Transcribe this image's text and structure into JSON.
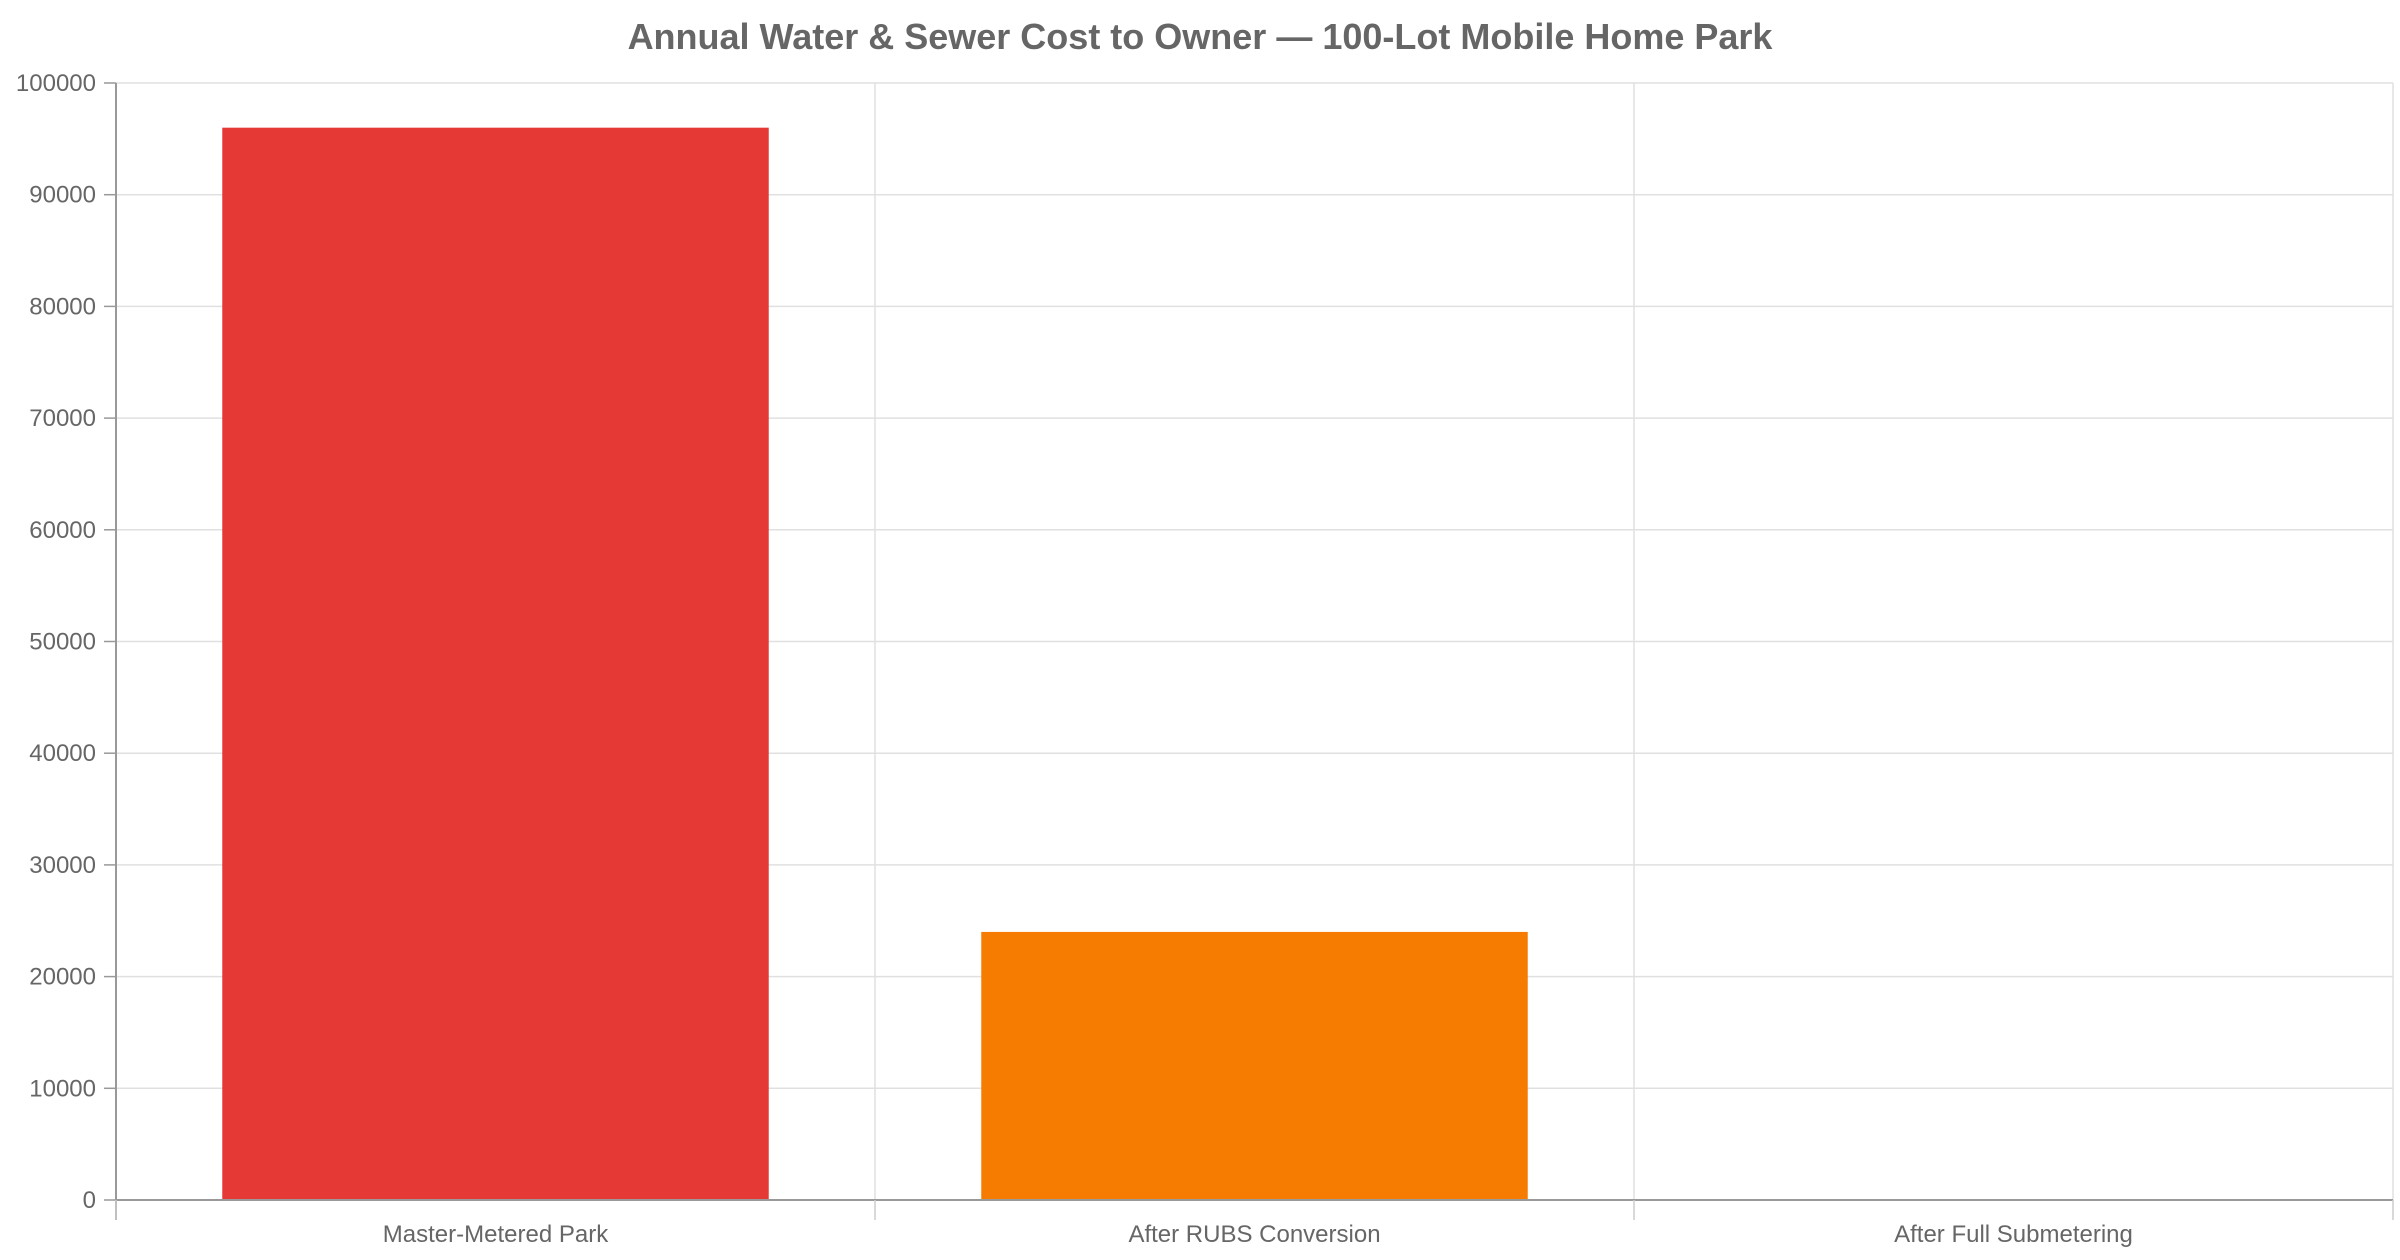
{
  "chart_data": {
    "type": "bar",
    "title": "Annual Water & Sewer Cost to Owner — 100-Lot Mobile Home Park",
    "xlabel": "",
    "ylabel": "",
    "categories": [
      "Master-Metered Park",
      "After RUBS Conversion",
      "After Full Submetering"
    ],
    "values": [
      96000,
      24000,
      0
    ],
    "bar_colors": [
      "#e53935",
      "#f57c00",
      "#fbc02d"
    ],
    "ylim": [
      0,
      100000
    ],
    "yticks": [
      "0",
      "10000",
      "20000",
      "30000",
      "40000",
      "50000",
      "60000",
      "70000",
      "80000",
      "90000",
      "100000"
    ],
    "grid": true,
    "legend": "none"
  }
}
